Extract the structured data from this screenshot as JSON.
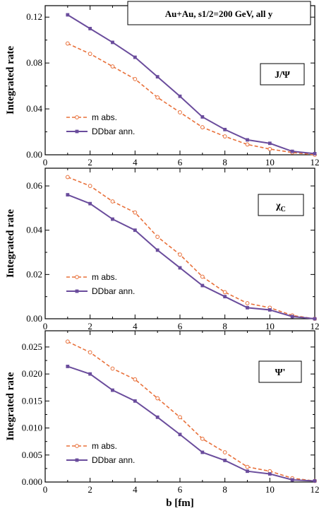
{
  "figure": {
    "title": "Au+Au,  s1/2=200 GeV,   all y",
    "xlabel": "b [fm]"
  },
  "colors": {
    "m_abs": "#e8703a",
    "ddbar": "#6a4c9c",
    "axis": "#000000"
  },
  "chart_data": [
    {
      "type": "line",
      "panel_label": "J/Ψ",
      "ylabel": "Integrated rate",
      "xlim": [
        0,
        12
      ],
      "ylim": [
        0,
        0.13
      ],
      "xticks": [
        0,
        2,
        4,
        6,
        8,
        10,
        12
      ],
      "yticks": [
        0.0,
        0.04,
        0.08,
        0.12
      ],
      "ytick_labels": [
        "0.00",
        "0.04",
        "0.08",
        "0.12"
      ],
      "legend_position": "lower-left",
      "x": [
        1,
        2,
        3,
        4,
        5,
        6,
        7,
        8,
        9,
        10,
        11,
        12
      ],
      "series": [
        {
          "name": "m abs.",
          "style": "dashed-open-circle",
          "values": [
            0.097,
            0.088,
            0.077,
            0.066,
            0.05,
            0.037,
            0.024,
            0.016,
            0.009,
            0.005,
            0.002,
            0.0
          ]
        },
        {
          "name": "DDbar ann.",
          "style": "solid-filled-square",
          "values": [
            0.122,
            0.11,
            0.098,
            0.085,
            0.068,
            0.051,
            0.033,
            0.022,
            0.013,
            0.01,
            0.003,
            0.001
          ]
        }
      ]
    },
    {
      "type": "line",
      "panel_label": "χ",
      "panel_label_sub": "C",
      "ylabel": "Integrated rate",
      "xlim": [
        0,
        12
      ],
      "ylim": [
        0,
        0.068
      ],
      "xticks": [
        0,
        2,
        4,
        6,
        8,
        10,
        12
      ],
      "yticks": [
        0.0,
        0.02,
        0.04,
        0.06
      ],
      "ytick_labels": [
        "0.00",
        "0.02",
        "0.04",
        "0.06"
      ],
      "legend_position": "lower-left",
      "x": [
        1,
        2,
        3,
        4,
        5,
        6,
        7,
        8,
        9,
        10,
        11,
        12
      ],
      "series": [
        {
          "name": "m abs.",
          "style": "dashed-open-circle",
          "values": [
            0.064,
            0.06,
            0.053,
            0.048,
            0.037,
            0.029,
            0.019,
            0.012,
            0.007,
            0.005,
            0.0015,
            0.0
          ]
        },
        {
          "name": "DDbar ann.",
          "style": "solid-filled-square",
          "values": [
            0.056,
            0.052,
            0.045,
            0.04,
            0.031,
            0.023,
            0.015,
            0.01,
            0.005,
            0.004,
            0.001,
            0.0
          ]
        }
      ]
    },
    {
      "type": "line",
      "panel_label": "Ψ'",
      "ylabel": "Integrated rate",
      "xlim": [
        0,
        12
      ],
      "ylim": [
        0,
        0.028
      ],
      "xticks": [
        0,
        2,
        4,
        6,
        8,
        10,
        12
      ],
      "yticks": [
        0.0,
        0.005,
        0.01,
        0.015,
        0.02,
        0.025
      ],
      "ytick_labels": [
        "0.000",
        "0.005",
        "0.010",
        "0.015",
        "0.020",
        "0.025"
      ],
      "legend_position": "lower-left",
      "x": [
        1,
        2,
        3,
        4,
        5,
        6,
        7,
        8,
        9,
        10,
        11,
        12
      ],
      "series": [
        {
          "name": "m abs.",
          "style": "dashed-open-circle",
          "values": [
            0.026,
            0.024,
            0.021,
            0.019,
            0.0155,
            0.012,
            0.008,
            0.0055,
            0.0028,
            0.002,
            0.0007,
            0.0002
          ]
        },
        {
          "name": "DDbar ann.",
          "style": "solid-filled-square",
          "values": [
            0.0214,
            0.02,
            0.017,
            0.015,
            0.012,
            0.0088,
            0.0055,
            0.004,
            0.002,
            0.0015,
            0.0004,
            0.0002
          ]
        }
      ]
    }
  ]
}
